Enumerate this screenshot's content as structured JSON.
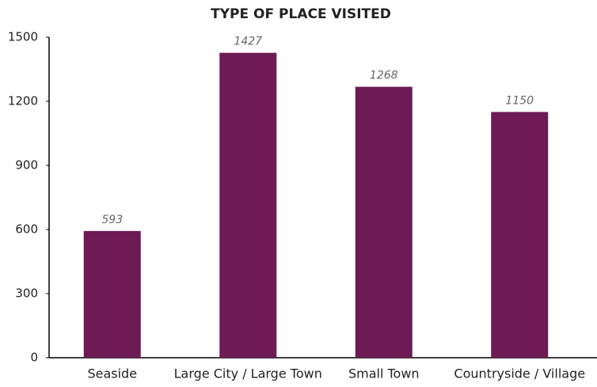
{
  "chart_data": {
    "type": "bar",
    "title": "TYPE OF PLACE VISITED",
    "categories": [
      "Seaside",
      "Large City / Large Town",
      "Small Town",
      "Countryside / Village"
    ],
    "values": [
      593,
      1427,
      1268,
      1150
    ],
    "color": "#6d1a55",
    "ylim": [
      0,
      1500
    ],
    "yticks": [
      0,
      300,
      600,
      900,
      1200,
      1500
    ],
    "grid": false
  }
}
